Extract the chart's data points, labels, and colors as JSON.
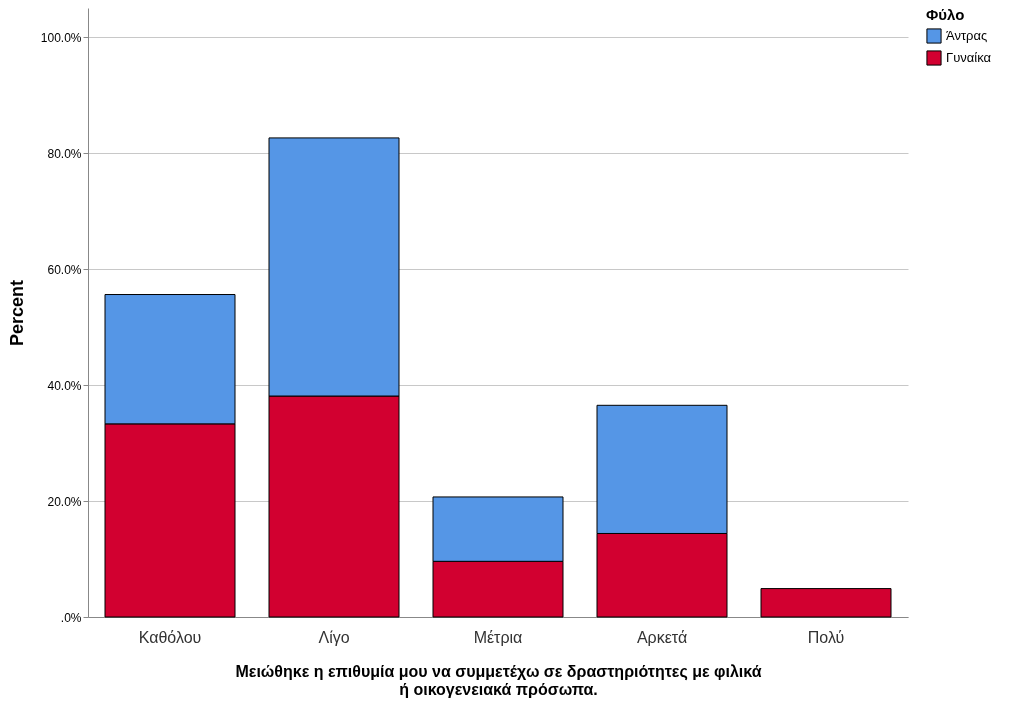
{
  "chart_data": {
    "type": "bar",
    "stacked": true,
    "xlabel": "Μειώθηκε η επιθυμία μου να συμμετέχω σε δραστηριότητες με φιλικά\nή οικογενειακά πρόσωπα.",
    "ylabel": "Percent",
    "legend_title": "Φύλο",
    "categories": [
      "Καθόλου",
      "Λίγο",
      "Μέτρια",
      "Αρκετά",
      "Πολύ"
    ],
    "series": [
      {
        "name": "Γυναίκα",
        "color": "#d20030",
        "values": [
          33.3,
          38.1,
          9.6,
          14.4,
          4.9
        ]
      },
      {
        "name": "Άντρας",
        "color": "#5596e6",
        "values": [
          22.3,
          44.5,
          11.1,
          22.1,
          null
        ]
      }
    ],
    "ylim": [
      0,
      105
    ],
    "yticks": [
      {
        "value": 0,
        "label": ".0%"
      },
      {
        "value": 20,
        "label": "20.0%"
      },
      {
        "value": 40,
        "label": "40.0%"
      },
      {
        "value": 60,
        "label": "60.0%"
      },
      {
        "value": 80,
        "label": "80.0%"
      },
      {
        "value": 100,
        "label": "100.0%"
      }
    ],
    "grid": "y",
    "legend": "top right"
  }
}
